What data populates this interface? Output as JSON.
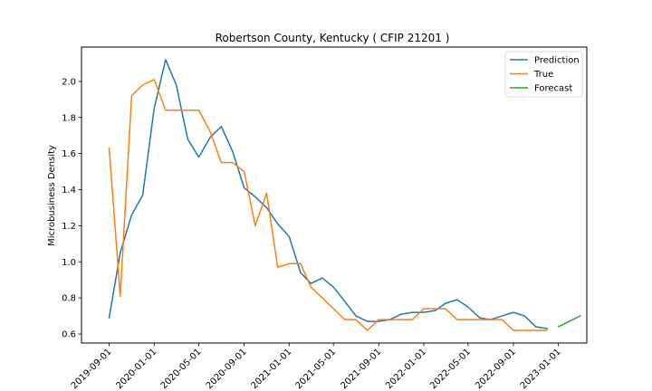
{
  "chart_data": {
    "type": "line",
    "title": "Robertson County, Kentucky ( CFIP 21201 )",
    "xlabel": "",
    "ylabel": "Microbusiness Density",
    "x_ticks": [
      "2019-09-01",
      "2020-01-01",
      "2020-05-01",
      "2020-09-01",
      "2021-01-01",
      "2021-05-01",
      "2021-09-01",
      "2022-01-01",
      "2022-05-01",
      "2022-09-01",
      "2023-01-01"
    ],
    "y_ticks": [
      "0.6",
      "0.8",
      "1.0",
      "1.2",
      "1.4",
      "1.6",
      "1.8",
      "2.0"
    ],
    "ylim": [
      0.55,
      2.19
    ],
    "xlim": [
      "2019-06-18",
      "2023-03-19"
    ],
    "legend_position": "top-right",
    "grid": false,
    "series": [
      {
        "name": "Prediction",
        "color": "#1f77b4",
        "points": [
          [
            "2019-09-01",
            0.69
          ],
          [
            "2019-10-01",
            1.05
          ],
          [
            "2019-11-01",
            1.26
          ],
          [
            "2019-12-01",
            1.37
          ],
          [
            "2020-01-01",
            1.85
          ],
          [
            "2020-02-01",
            2.12
          ],
          [
            "2020-03-01",
            1.98
          ],
          [
            "2020-04-01",
            1.68
          ],
          [
            "2020-05-01",
            1.58
          ],
          [
            "2020-06-01",
            1.69
          ],
          [
            "2020-07-01",
            1.75
          ],
          [
            "2020-08-01",
            1.61
          ],
          [
            "2020-09-01",
            1.41
          ],
          [
            "2020-10-01",
            1.36
          ],
          [
            "2020-11-01",
            1.3
          ],
          [
            "2020-12-01",
            1.21
          ],
          [
            "2021-01-01",
            1.14
          ],
          [
            "2021-02-01",
            0.94
          ],
          [
            "2021-03-01",
            0.88
          ],
          [
            "2021-04-01",
            0.91
          ],
          [
            "2021-05-01",
            0.86
          ],
          [
            "2021-06-01",
            0.78
          ],
          [
            "2021-07-01",
            0.7
          ],
          [
            "2021-08-01",
            0.67
          ],
          [
            "2021-09-01",
            0.67
          ],
          [
            "2021-10-01",
            0.68
          ],
          [
            "2021-11-01",
            0.71
          ],
          [
            "2021-12-01",
            0.72
          ],
          [
            "2022-01-01",
            0.72
          ],
          [
            "2022-02-01",
            0.73
          ],
          [
            "2022-03-01",
            0.77
          ],
          [
            "2022-04-01",
            0.79
          ],
          [
            "2022-05-01",
            0.75
          ],
          [
            "2022-06-01",
            0.69
          ],
          [
            "2022-07-01",
            0.68
          ],
          [
            "2022-08-01",
            0.7
          ],
          [
            "2022-09-01",
            0.72
          ],
          [
            "2022-10-01",
            0.7
          ],
          [
            "2022-11-01",
            0.64
          ],
          [
            "2022-12-01",
            0.63
          ]
        ]
      },
      {
        "name": "True",
        "color": "#ff7f0e",
        "points": [
          [
            "2019-09-01",
            1.63
          ],
          [
            "2019-10-01",
            0.81
          ],
          [
            "2019-11-01",
            1.92
          ],
          [
            "2019-12-01",
            1.98
          ],
          [
            "2020-01-01",
            2.01
          ],
          [
            "2020-02-01",
            1.84
          ],
          [
            "2020-03-01",
            1.84
          ],
          [
            "2020-04-01",
            1.84
          ],
          [
            "2020-05-01",
            1.84
          ],
          [
            "2020-06-01",
            1.72
          ],
          [
            "2020-07-01",
            1.55
          ],
          [
            "2020-08-01",
            1.55
          ],
          [
            "2020-09-01",
            1.5
          ],
          [
            "2020-10-01",
            1.2
          ],
          [
            "2020-11-01",
            1.38
          ],
          [
            "2020-12-01",
            0.97
          ],
          [
            "2021-01-01",
            0.99
          ],
          [
            "2021-02-01",
            0.99
          ],
          [
            "2021-03-01",
            0.86
          ],
          [
            "2021-04-01",
            0.8
          ],
          [
            "2021-05-01",
            0.74
          ],
          [
            "2021-06-01",
            0.68
          ],
          [
            "2021-07-01",
            0.68
          ],
          [
            "2021-08-01",
            0.62
          ],
          [
            "2021-09-01",
            0.68
          ],
          [
            "2021-10-01",
            0.68
          ],
          [
            "2021-11-01",
            0.68
          ],
          [
            "2021-12-01",
            0.68
          ],
          [
            "2022-01-01",
            0.74
          ],
          [
            "2022-02-01",
            0.74
          ],
          [
            "2022-03-01",
            0.74
          ],
          [
            "2022-04-01",
            0.68
          ],
          [
            "2022-05-01",
            0.68
          ],
          [
            "2022-06-01",
            0.68
          ],
          [
            "2022-07-01",
            0.68
          ],
          [
            "2022-08-01",
            0.68
          ],
          [
            "2022-09-01",
            0.62
          ],
          [
            "2022-10-01",
            0.62
          ],
          [
            "2022-11-01",
            0.62
          ],
          [
            "2022-12-01",
            0.62
          ]
        ]
      },
      {
        "name": "Forecast",
        "color": "#2ca02c",
        "points": [
          [
            "2023-01-01",
            0.64
          ],
          [
            "2023-03-01",
            0.7
          ]
        ]
      }
    ]
  }
}
